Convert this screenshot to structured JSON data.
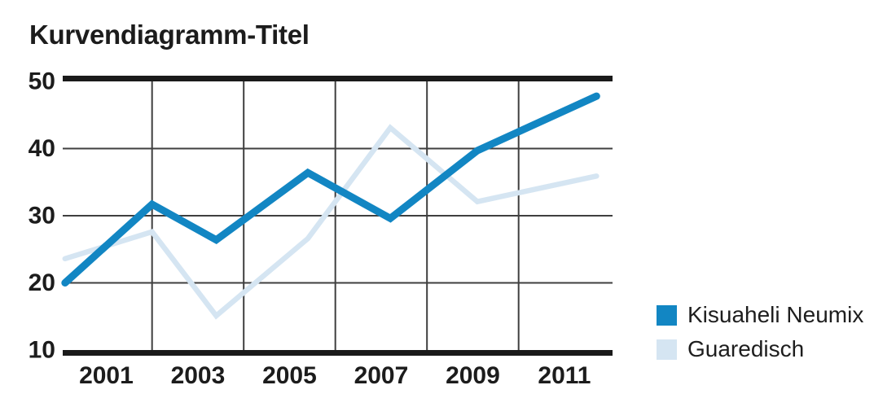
{
  "title": "Kurvendiagramm-Titel",
  "chart_data": {
    "type": "line",
    "title": "Kurvendiagramm-Titel",
    "xlabel": "",
    "ylabel": "",
    "x": [
      2000.1,
      2002.0,
      2003.4,
      2005.4,
      2007.2,
      2009.1,
      2011.7
    ],
    "series": [
      {
        "name": "Kisuaheli Neumix",
        "color": "#1286c3",
        "stroke_width": 9,
        "values": [
          20.0,
          31.7,
          26.4,
          36.4,
          29.6,
          39.7,
          47.8
        ]
      },
      {
        "name": "Guaredisch",
        "color": "#d5e5f2",
        "stroke_width": 6.5,
        "values": [
          23.6,
          27.6,
          15.1,
          26.6,
          43.1,
          32.1,
          35.9
        ]
      }
    ],
    "xlim": [
      2000.05,
      2012.05
    ],
    "ylim": [
      10,
      50
    ],
    "y_ticks": [
      50,
      40,
      30,
      20,
      10
    ],
    "x_tick_years": [
      2001,
      2003,
      2005,
      2007,
      2009,
      2011
    ],
    "x_tick_labels": [
      "2001",
      "2003",
      "2005",
      "2007",
      "2009",
      "2011"
    ],
    "grid_years": [
      2002,
      2004,
      2006,
      2008,
      2010
    ],
    "grid_values": [
      40,
      30,
      20
    ],
    "grid_on": true,
    "axis_color": "#1a1a1a",
    "grid_color": "#3f3f3f",
    "legend_position": "right-bottom"
  }
}
